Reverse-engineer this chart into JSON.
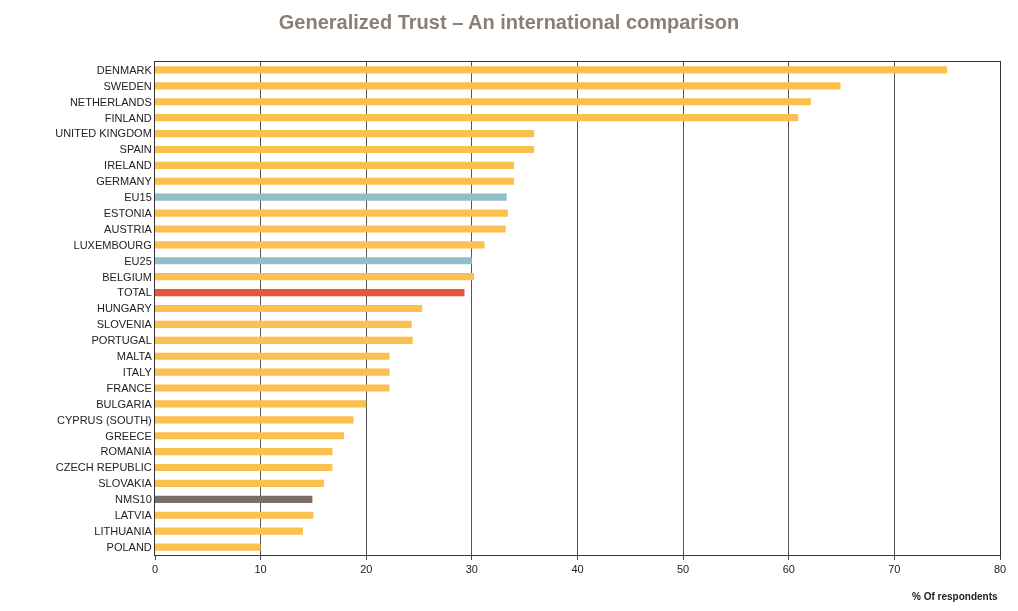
{
  "chart_data": {
    "type": "bar",
    "orientation": "horizontal",
    "title": "Generalized Trust – An international comparison",
    "xlabel": "% Of respondents",
    "categories": [
      "DENMARK",
      "SWEDEN",
      "NETHERLANDS",
      "FINLAND",
      "UNITED KINGDOM",
      "SPAIN",
      "IRELAND",
      "GERMANY",
      "EU15",
      "ESTONIA",
      "AUSTRIA",
      "LUXEMBOURG",
      "EU25",
      "BELGIUM",
      "TOTAL",
      "HUNGARY",
      "SLOVENIA",
      "PORTUGAL",
      "MALTA",
      "ITALY",
      "FRANCE",
      "BULGARIA",
      "CYPRUS (SOUTH)",
      "GREECE",
      "ROMANIA",
      "CZECH REPUBLIC",
      "SLOVAKIA",
      "NMS10",
      "LATVIA",
      "LITHUANIA",
      "POLAND"
    ],
    "values": [
      75,
      64.9,
      62.1,
      60.9,
      35.9,
      35.9,
      34,
      34,
      33.3,
      33.4,
      33.2,
      31.2,
      30,
      30.2,
      29.3,
      25.3,
      24.3,
      24.4,
      22.2,
      22.2,
      22.2,
      20,
      18.8,
      17.9,
      16.8,
      16.8,
      16,
      14.9,
      15,
      14,
      10
    ],
    "colors": [
      "#fbc04f",
      "#fbc04f",
      "#fbc04f",
      "#fbc04f",
      "#fbc04f",
      "#fbc04f",
      "#fbc04f",
      "#fbc04f",
      "#8fbfc9",
      "#fbc04f",
      "#fbc04f",
      "#fbc04f",
      "#8fbfc9",
      "#fbc04f",
      "#e8553a",
      "#fbc04f",
      "#fbc04f",
      "#fbc04f",
      "#fbc04f",
      "#fbc04f",
      "#fbc04f",
      "#fbc04f",
      "#fbc04f",
      "#fbc04f",
      "#fbc04f",
      "#fbc04f",
      "#fbc04f",
      "#7a6e66",
      "#fbc04f",
      "#fbc04f",
      "#fbc04f"
    ],
    "xlim": [
      0,
      80
    ],
    "xticks": [
      0,
      10,
      20,
      30,
      40,
      50,
      60,
      70,
      80
    ],
    "grid": "x"
  }
}
